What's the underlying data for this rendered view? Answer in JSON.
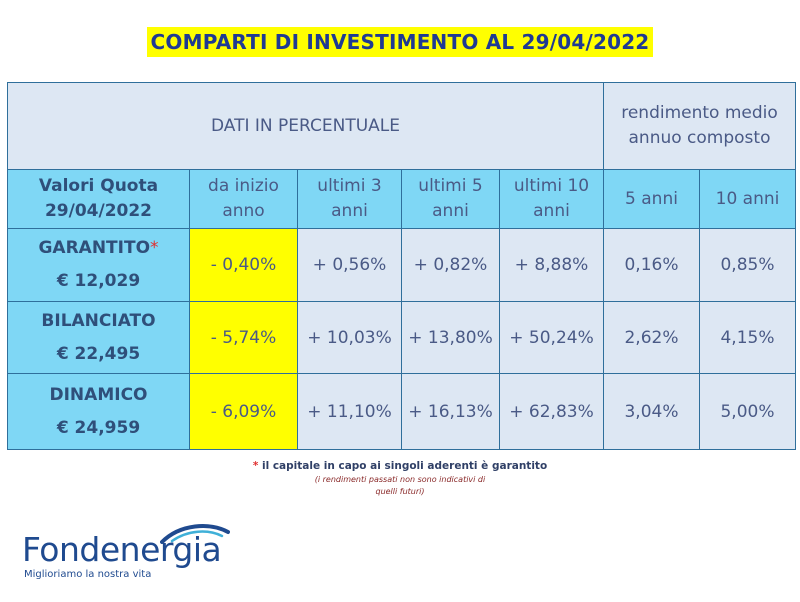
{
  "title": "COMPARTI DI INVESTIMENTO AL 29/04/2022",
  "header": {
    "dati": "DATI IN PERCENTUALE",
    "rendimento": "rendimento medio annuo composto"
  },
  "columns": {
    "valori": "Valori Quota 29/04/2022",
    "inizio": "da inizio anno",
    "u3": "ultimi 3 anni",
    "u5": "ultimi 5 anni",
    "u10": "ultimi 10 anni",
    "a5": "5 anni",
    "a10": "10 anni"
  },
  "rows": [
    {
      "name": "GARANTITO",
      "star": "*",
      "quota": "€ 12,029",
      "inizio": "- 0,40%",
      "u3": "+ 0,56%",
      "u5": "+ 0,82%",
      "u10": "+ 8,88%",
      "a5": "0,16%",
      "a10": "0,85%"
    },
    {
      "name": "BILANCIATO",
      "star": "",
      "quota": "€ 22,495",
      "inizio": "- 5,74%",
      "u3": "+ 10,03%",
      "u5": "+ 13,80%",
      "u10": "+ 50,24%",
      "a5": "2,62%",
      "a10": "4,15%"
    },
    {
      "name": "DINAMICO",
      "star": "",
      "quota": "€ 24,959",
      "inizio": "- 6,09%",
      "u3": "+ 11,10%",
      "u5": "+ 16,13%",
      "u10": "+ 62,83%",
      "a5": "3,04%",
      "a10": "5,00%"
    }
  ],
  "notes": {
    "star": "*",
    "capitale": " il capitale in capo ai singoli aderenti è garantito",
    "rendimenti": "(i rendimenti passati non sono indicativi di quelli futuri)"
  },
  "logo": {
    "name": "Fondenergia",
    "tagline": "Miglioriamo la nostra vita"
  },
  "colors": {
    "header_blue": "#7fd7f5",
    "cell_bg": "#dde7f3",
    "highlight": "#ffff00",
    "text": "#4a5a86",
    "brand": "#1f4a8f"
  }
}
